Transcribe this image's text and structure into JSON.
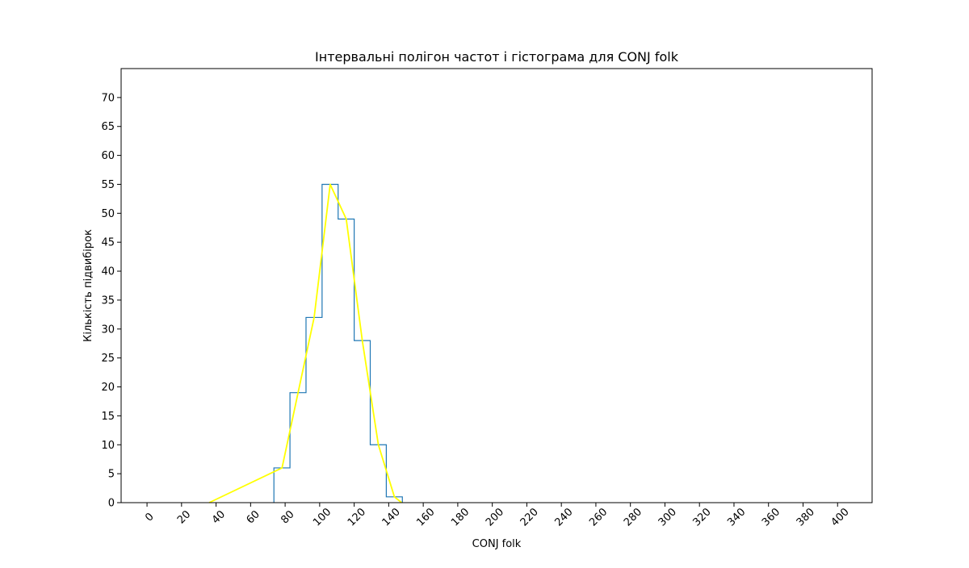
{
  "chart_data": {
    "type": "histogram",
    "title": "Інтервальні полігон частот і гістограма для CONJ folk",
    "xlabel": "CONJ folk",
    "ylabel": "Кількість підвибірок",
    "xlim": [
      -15,
      420
    ],
    "ylim": [
      0,
      75
    ],
    "x_ticks": [
      "0",
      "20",
      "40",
      "60",
      "80",
      "100",
      "120",
      "140",
      "160",
      "180",
      "200",
      "220",
      "240",
      "260",
      "280",
      "300",
      "320",
      "340",
      "360",
      "380",
      "400"
    ],
    "y_ticks": [
      "0",
      "5",
      "10",
      "15",
      "20",
      "25",
      "30",
      "35",
      "40",
      "45",
      "50",
      "55",
      "60",
      "65",
      "70"
    ],
    "x_tick_rotation_deg": -45,
    "grid": false,
    "legend": "none",
    "histogram": {
      "name": "histogram",
      "color": "#1f77b4",
      "bin_edges": [
        73.5,
        82.8,
        92.1,
        101.4,
        110.7,
        120.0,
        129.3,
        138.6,
        147.9
      ],
      "counts": [
        6,
        19,
        32,
        55,
        49,
        28,
        10,
        1
      ]
    },
    "polygon": {
      "name": "frequency polygon",
      "color": "#ffff00",
      "x": [
        36.0,
        78.2,
        87.5,
        96.8,
        106.1,
        115.4,
        124.7,
        134.0,
        143.3,
        147.5
      ],
      "y": [
        0,
        6,
        19,
        32,
        55,
        49,
        28,
        10,
        1,
        0
      ]
    }
  }
}
